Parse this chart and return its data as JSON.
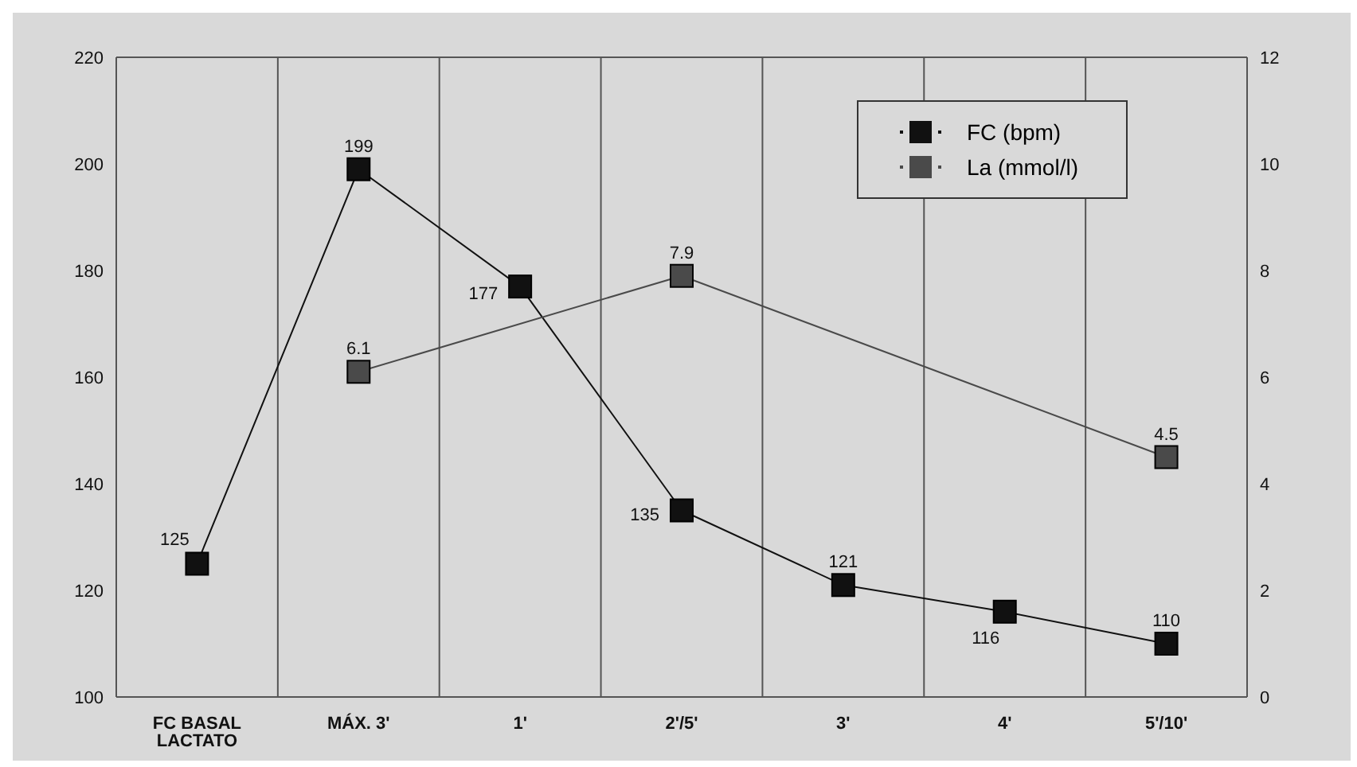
{
  "chart_data": {
    "type": "line",
    "categories": [
      "FC BASAL LACTATO",
      "MÁX. 3'",
      "1'",
      "2'/5'",
      "3'",
      "4'",
      "5'/10'"
    ],
    "series": [
      {
        "name": "FC (bpm)",
        "color": "#111111",
        "values": [
          125,
          199,
          177,
          135,
          121,
          116,
          110
        ]
      },
      {
        "name": "La (mmol/l)",
        "color": "#4a4a4a",
        "axis": "y2",
        "values": [
          null,
          6.1,
          null,
          7.9,
          null,
          null,
          4.5
        ]
      }
    ],
    "ylim": [
      100,
      220
    ],
    "yticks": [
      100,
      120,
      140,
      160,
      180,
      200,
      220
    ],
    "y2lim": [
      0,
      12
    ],
    "y2ticks": [
      0,
      2,
      4,
      6,
      8,
      10,
      12
    ],
    "grid": true,
    "legend": "top right",
    "marker": "square",
    "line_style": "solid",
    "data_labels": true
  }
}
